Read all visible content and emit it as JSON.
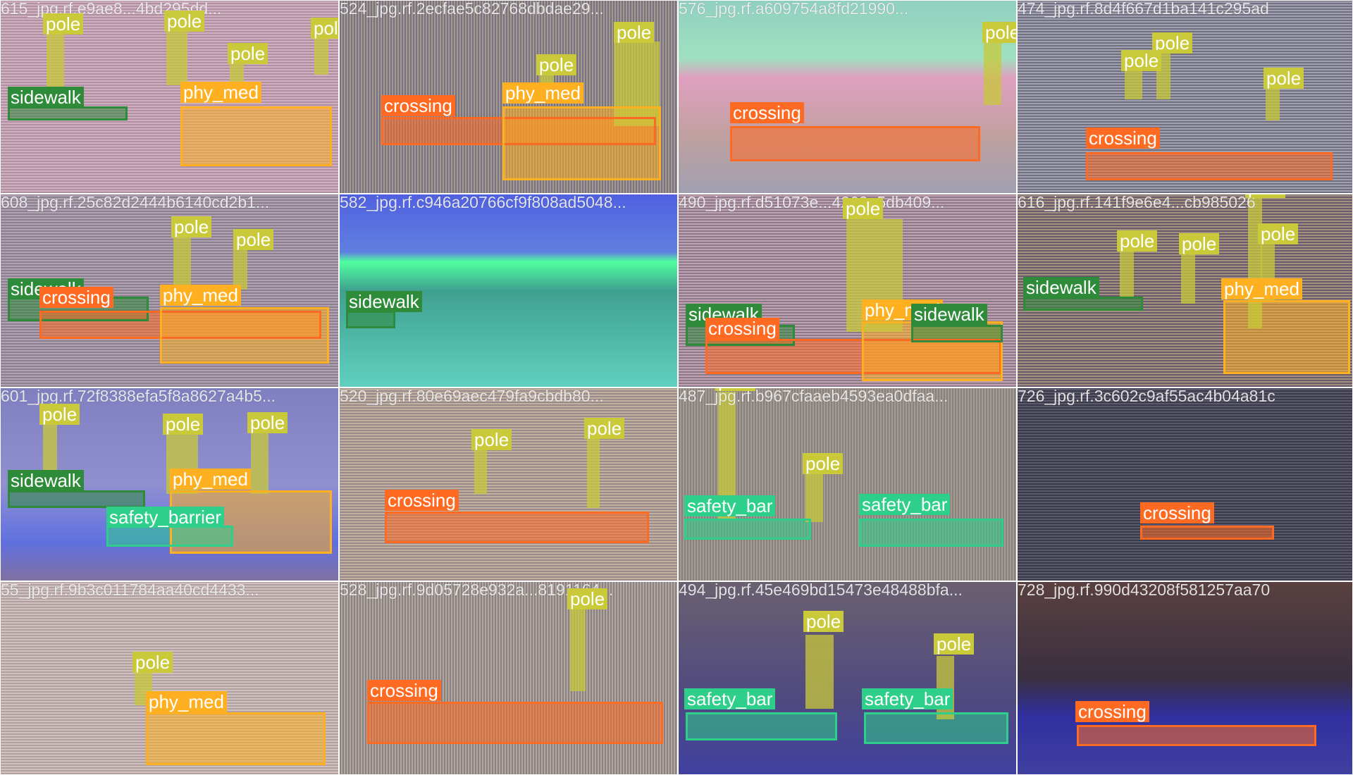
{
  "tiles": [
    {
      "title": "615_jpg.rf.e9ae8...4bd295dd...",
      "labels": [
        "pole",
        "pole",
        "pole",
        "pole",
        "sidewalk",
        "phy_med"
      ]
    },
    {
      "title": "524_jpg.rf.2ecfae5c82768dbdae29...",
      "labels": [
        "pole",
        "pole",
        "crossing",
        "phy_med"
      ]
    },
    {
      "title": "576_jpg.rf.a609754a8fd21990...",
      "labels": [
        "pole",
        "crossing"
      ]
    },
    {
      "title": "474_jpg.rf.8d4f667d1ba141c295ad",
      "labels": [
        "pole",
        "pole",
        "pole",
        "crossing"
      ]
    },
    {
      "title": "608_jpg.rf.25c82d2444b6140cd2b1...",
      "labels": [
        "pole",
        "pole",
        "sidewalk",
        "crossing",
        "phy_med"
      ]
    },
    {
      "title": "582_jpg.rf.c946a20766cf9f808ad5048...",
      "labels": [
        "sidewalk"
      ]
    },
    {
      "title": "490_jpg.rf.d51073e...4263a5db409...",
      "labels": [
        "pole",
        "sidewalk",
        "crossing",
        "phy_med",
        "sidewalk"
      ]
    },
    {
      "title": "616_jpg.rf.141f9e6e4...cb985026",
      "labels": [
        "pole",
        "pole",
        "pole",
        "pole",
        "sidewalk",
        "phy_med"
      ]
    },
    {
      "title": "601_jpg.rf.72f8388efa5f8a8627a4b5...",
      "labels": [
        "pole",
        "pole",
        "pole",
        "sidewalk",
        "phy_med",
        "safety_barrier"
      ]
    },
    {
      "title": "520_jpg.rf.80e69aec479fa9cbdb80...",
      "labels": [
        "pole",
        "pole",
        "crossing"
      ]
    },
    {
      "title": "487_jpg.rf.b967cfaaeb4593ea0dfaa...",
      "labels": [
        "pole",
        "pole",
        "safety_bar",
        "safety_bar"
      ]
    },
    {
      "title": "726_jpg.rf.3c602c9af55ac4b04a81c",
      "labels": [
        "crossing"
      ]
    },
    {
      "title": "55_jpg.rf.9b3c011784aa40cd4433...",
      "labels": [
        "pole",
        "phy_med"
      ]
    },
    {
      "title": "528_jpg.rf.9d05728e932a...8191164...",
      "labels": [
        "pole",
        "crossing"
      ]
    },
    {
      "title": "494_jpg.rf.45e469bd15473e48488bfa...",
      "labels": [
        "pole",
        "pole",
        "safety_bar",
        "safety_bar"
      ]
    },
    {
      "title": "728_jpg.rf.990d43208f581257aa70",
      "labels": [
        "crossing"
      ]
    }
  ],
  "colors": {
    "pole": "#c9c93a",
    "sidewalk": "#2e8b3a",
    "crossing": "#ff6a22",
    "phy_med": "#ffb020",
    "safety_bar": "#2ecf8a"
  },
  "icon_names": []
}
